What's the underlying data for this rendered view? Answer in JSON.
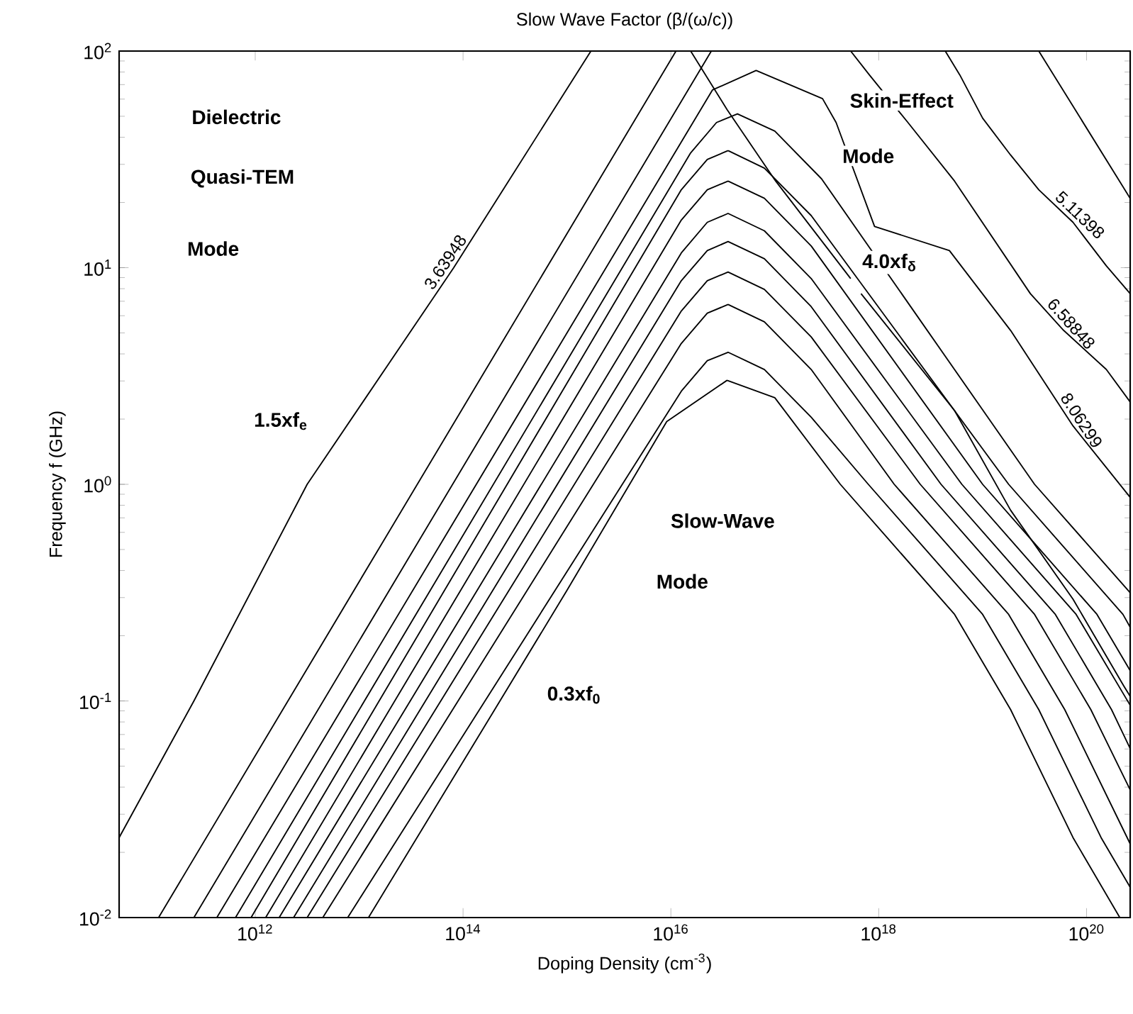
{
  "chart_data": {
    "type": "line",
    "title": "Slow Wave Factor (β/(ω/c))",
    "xlabel": "Doping Density (cm$^{-3}$)",
    "ylabel": "Frequency f (GHz)",
    "log": "xy",
    "xlim": [
      49000000000.0,
      2.63e+20
    ],
    "ylim": [
      0.01,
      100
    ],
    "xticks": [
      {
        "value": 1000000000000.0,
        "label": "10$^{12}$"
      },
      {
        "value": 100000000000000.0,
        "label": "10$^{14}$"
      },
      {
        "value": 1e+16,
        "label": "10$^{16}$"
      },
      {
        "value": 1e+18,
        "label": "10$^{18}$"
      },
      {
        "value": 1e+20,
        "label": "10$^{20}$"
      }
    ],
    "yticks": [
      {
        "value": 0.01,
        "label": "10$^{-2}$"
      },
      {
        "value": 0.1,
        "label": "10$^{-1}$"
      },
      {
        "value": 1,
        "label": "10$^{0}$"
      },
      {
        "value": 10,
        "label": "10$^{1}$"
      },
      {
        "value": 100,
        "label": "10$^{2}$"
      }
    ],
    "series": [
      {
        "color": "#000000",
        "x": [
          49000000000.0,
          257000000000.0,
          3160000000000.0,
          81300000000000.0,
          1700000000000000.0,
          1e+17,
          3.47e+19,
          2.63e+20
        ],
        "values": [
          0.0234,
          0.1,
          1,
          10,
          100,
          null,
          100,
          20.9
        ]
      },
      {
        "color": "#000000",
        "x": [
          12300000000000.0,
          123000000000000.0,
          1000000000000000.0,
          9120000000000000.0,
          3.47e+16,
          1e+17,
          4.27e+17,
          5.37e+18,
          1.86e+19,
          7.41e+19,
          2.09e+20
        ],
        "values": [
          0.01,
          0.0617,
          0.324,
          1.95,
          3.02,
          2.51,
          1,
          0.251,
          0.0912,
          0.0234,
          0.01
        ]
      },
      {
        "color": "#000000",
        "x": [
          1.55e+16,
          3.47e+16,
          1.02e+17,
          5.37e+17,
          6.03e+17,
          6.76e+17,
          5.37e+18,
          1.86e+19,
          7.41e+19,
          2.29e+20,
          2.63e+20
        ],
        "values": [
          100,
          53.7,
          25.1,
          8.91,
          null,
          7.59,
          2.19,
          0.759,
          0.295,
          0.117,
          0.105
        ]
      },
      {
        "color": "#000000",
        "x": [
          117500000000.0,
          1.12e+16,
          1e+17,
          4.37e+18,
          6.03e+18,
          1e+19,
          1.86e+19,
          3.47e+19,
          7.41e+19,
          1.55e+20,
          2.63e+20
        ],
        "values": [
          0.01,
          100,
          null,
          100,
          77.6,
          49.0,
          33.1,
          22.9,
          16.2,
          10.2,
          7.59
        ]
      },
      {
        "color": "#000000",
        "x": [
          257000000000.0,
          2.45e+16,
          1e+17,
          5.37e+17,
          8.13e+17,
          1.91e+18,
          5.37e+18,
          2.88e+19,
          6.03e+19,
          1.55e+20,
          2.63e+20
        ],
        "values": [
          0.01,
          100,
          null,
          100,
          77.6,
          46.8,
          25.1,
          7.59,
          5.13,
          3.39,
          2.4
        ]
      },
      {
        "color": "#000000",
        "x": [
          427000000000.0,
          1e+16,
          2.51e+16,
          6.61e+16,
          2.88e+17,
          3.89e+17,
          9.12e+17,
          4.79e+18,
          1.86e+19,
          7.41e+19,
          2.63e+20
        ],
        "values": [
          0.01,
          31.6,
          66.1,
          81.3,
          60.3,
          46.8,
          15.5,
          12.0,
          5.13,
          1.86,
          0.871
        ]
      },
      {
        "color": "#000000",
        "x": [
          646000000000.0,
          1.55e+16,
          2.75e+16,
          4.37e+16,
          1e+17,
          2.82e+17,
          3.16e+19,
          2.63e+20
        ],
        "values": [
          0.01,
          33.9,
          46.8,
          51.3,
          42.7,
          25.7,
          1,
          0.316
        ]
      },
      {
        "color": "#000000",
        "x": [
          912000000000.0,
          1.26e+16,
          2.24e+16,
          3.55e+16,
          7.94e+16,
          2.24e+17,
          1.78e+19,
          2.24e+20,
          2.63e+20
        ],
        "values": [
          0.01,
          22.9,
          31.6,
          34.7,
          28.8,
          17.4,
          1,
          0.251,
          0.219
        ]
      },
      {
        "color": "#000000",
        "x": [
          1260000000000.0,
          1.26e+16,
          2.24e+16,
          3.55e+16,
          7.94e+16,
          2.24e+17,
          1e+19,
          1.26e+20,
          2.63e+20
        ],
        "values": [
          0.01,
          16.6,
          22.9,
          25.1,
          20.9,
          12.6,
          1,
          0.251,
          0.138
        ]
      },
      {
        "color": "#000000",
        "x": [
          1700000000000.0,
          1.26e+16,
          2.24e+16,
          3.55e+16,
          7.94e+16,
          2.24e+17,
          6.31e+18,
          7.94e+19,
          2.63e+20
        ],
        "values": [
          0.01,
          11.7,
          16.2,
          17.8,
          14.8,
          8.91,
          1,
          0.251,
          0.0955
        ]
      },
      {
        "color": "#000000",
        "x": [
          2340000000000.0,
          1.26e+16,
          2.24e+16,
          3.55e+16,
          7.94e+16,
          2.24e+17,
          3.98e+18,
          5.01e+19,
          1.74e+20,
          2.63e+20
        ],
        "values": [
          0.01,
          8.71,
          12.0,
          13.2,
          11.0,
          6.61,
          1,
          0.251,
          0.0912,
          0.0603
        ]
      },
      {
        "color": "#000000",
        "x": [
          3160000000000.0,
          1.26e+16,
          2.24e+16,
          3.55e+16,
          7.94e+16,
          2.24e+17,
          2.51e+18,
          3.16e+19,
          1.1e+20,
          2.63e+20
        ],
        "values": [
          0.01,
          6.31,
          8.71,
          9.55,
          7.94,
          4.79,
          1,
          0.251,
          0.0912,
          0.0389
        ]
      },
      {
        "color": "#000000",
        "x": [
          4470000000000.0,
          1.26e+16,
          2.24e+16,
          3.55e+16,
          7.94e+16,
          2.24e+17,
          1.41e+18,
          1.78e+19,
          6.17e+19,
          2.63e+20
        ],
        "values": [
          0.01,
          4.47,
          6.17,
          6.76,
          5.62,
          3.39,
          1,
          0.251,
          0.0912,
          0.0219
        ]
      },
      {
        "color": "#000000",
        "x": [
          7760000000000.0,
          1.26e+16,
          2.24e+16,
          3.55e+16,
          7.94e+16,
          2.24e+17,
          7.94e+17,
          1e+19,
          3.47e+19,
          1.38e+20,
          2.63e+20
        ],
        "values": [
          0.01,
          2.69,
          3.72,
          4.07,
          3.39,
          2.04,
          1,
          0.251,
          0.0912,
          0.0234,
          0.0138
        ]
      }
    ],
    "annotations": [
      "Dielectric",
      "Quasi-TEM",
      "Mode",
      "1.5xf$_{e}$",
      {
        "text": "3.63948",
        "x": 81300000000000.0,
        "y": 10
      },
      "Skin-Effect",
      "Mode",
      "4.0xf$_{δ}$",
      {
        "text": "5.11398",
        "x": 7.41e+19,
        "y": 16.2
      },
      {
        "text": "6.58848",
        "x": 6.03e+19,
        "y": 5.13
      },
      {
        "text": "8.06299",
        "x": 7.41e+19,
        "y": 1.86
      },
      "Slow-Wave",
      "Mode",
      "0.3xf$_{0}$"
    ]
  }
}
